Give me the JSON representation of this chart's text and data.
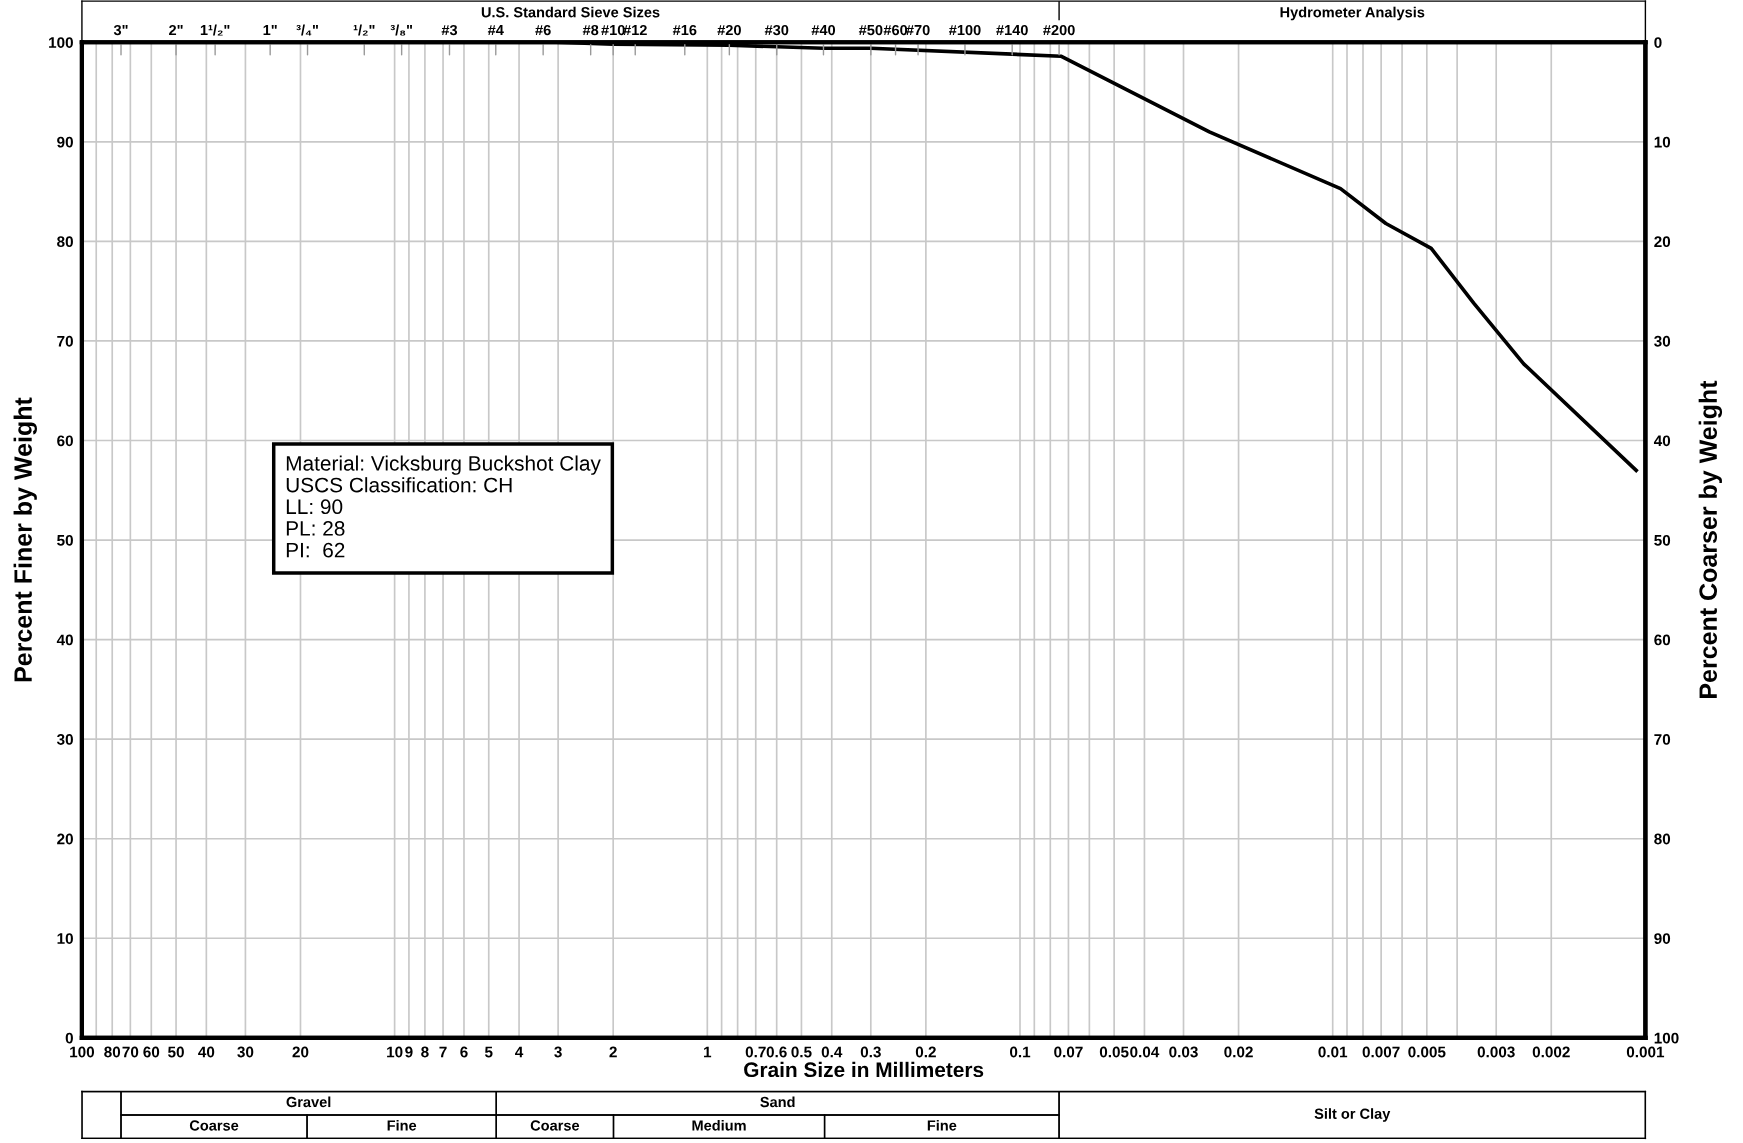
{
  "chart_data": {
    "type": "line",
    "xlabel": "Grain Size in Millimeters",
    "ylabel": "Percent Finer by Weight",
    "y2label": "Percent Coarser by Weight",
    "log": "x",
    "grid": true,
    "marker": "none",
    "line_style": "solid",
    "xlim": [
      100,
      0.001
    ],
    "xticks": [
      100,
      {
        "value": 90,
        "label": null
      },
      80,
      70,
      60,
      50,
      40,
      30,
      20,
      10,
      9,
      8,
      7,
      6,
      5,
      4,
      3,
      2,
      1,
      {
        "value": 0.9,
        "label": null
      },
      {
        "value": 0.8,
        "label": null
      },
      0.7,
      0.6,
      0.5,
      0.4,
      0.3,
      0.2,
      0.1,
      {
        "value": 0.09,
        "label": null
      },
      {
        "value": 0.08,
        "label": null
      },
      0.07,
      {
        "value": 0.06,
        "label": null
      },
      0.05,
      0.04,
      0.03,
      0.02,
      0.01,
      {
        "value": 0.009,
        "label": null
      },
      {
        "value": 0.008,
        "label": null
      },
      0.007,
      {
        "value": 0.006,
        "label": null
      },
      0.005,
      {
        "value": 0.004,
        "label": null
      },
      0.003,
      0.002,
      0.001
    ],
    "ylim": [
      0,
      100
    ],
    "yticks": [
      0,
      10,
      20,
      30,
      40,
      50,
      60,
      70,
      80,
      90,
      100
    ],
    "y2lim": [
      100,
      0
    ],
    "y2ticks": [
      0,
      10,
      20,
      30,
      40,
      50,
      60,
      70,
      80,
      90,
      100
    ],
    "series": [
      {
        "color": "#000000",
        "x": [
          3,
          2,
          0.85,
          0.425,
          0.3,
          0.074,
          0.0248,
          0.00944,
          0.00676,
          0.00484,
          0.00354,
          0.00245,
          0.00107
        ],
        "values": [
          100,
          99.8,
          99.7,
          99.4,
          99.4,
          98.6,
          91.0,
          85.3,
          81.8,
          79.3,
          73.8,
          67.7,
          57.0
        ]
      }
    ],
    "annotations": [
      "Material: Vicksburg Buckshot Clay\nUSCS Classification: CH\nLL: 90\nPL: 28\nPI:  62",
      "U.S. Standard Sieve Sizes",
      "Hydrometer Analysis",
      "Gravel",
      "Coarse",
      "Fine",
      "Sand",
      "Coarse",
      "Medium",
      "Fine",
      "Silt or Clay",
      "3\"",
      "2\"",
      "1¹/₂\"",
      "1\"",
      "³/₄\"",
      "¹/₂\"",
      "³/₈\"",
      "#3",
      "#4",
      "#6",
      "#8",
      "#10",
      "#12",
      "#16",
      "#20",
      "#30",
      "#40",
      "#50",
      "#60",
      "#70",
      "#100",
      "#140",
      "#200"
    ]
  }
}
